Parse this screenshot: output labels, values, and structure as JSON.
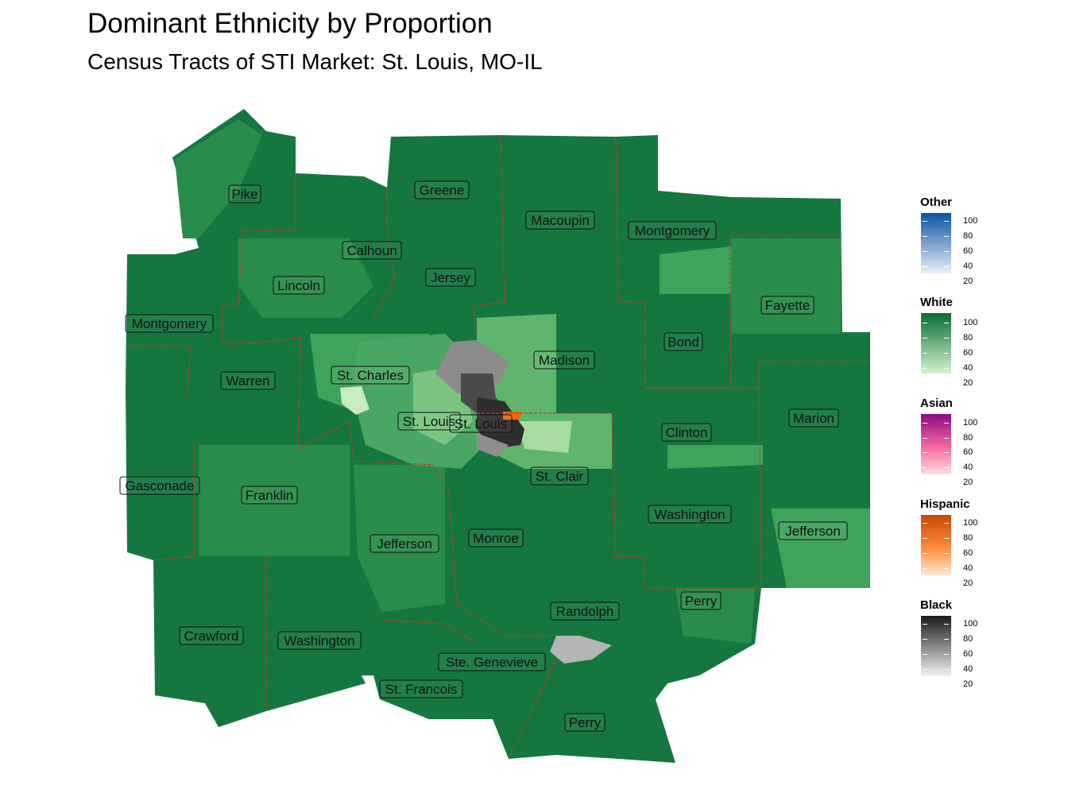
{
  "title": "Dominant Ethnicity by Proportion",
  "subtitle": "Census Tracts of STI Market: St. Louis, MO-IL",
  "counties": [
    {
      "name": "Pike"
    },
    {
      "name": "Greene"
    },
    {
      "name": "Calhoun"
    },
    {
      "name": "Macoupin"
    },
    {
      "name": "Montgomery"
    },
    {
      "name": "Jersey"
    },
    {
      "name": "Lincoln"
    },
    {
      "name": "Fayette"
    },
    {
      "name": "Montgomery"
    },
    {
      "name": "Bond"
    },
    {
      "name": "Madison"
    },
    {
      "name": "St. Charles"
    },
    {
      "name": "Warren"
    },
    {
      "name": "Marion"
    },
    {
      "name": "St. Louis"
    },
    {
      "name": "St. Louis"
    },
    {
      "name": "Clinton"
    },
    {
      "name": "St. Clair"
    },
    {
      "name": "Gasconade"
    },
    {
      "name": "Franklin"
    },
    {
      "name": "Washington"
    },
    {
      "name": "Jefferson"
    },
    {
      "name": "Monroe"
    },
    {
      "name": "Jefferson"
    },
    {
      "name": "Perry"
    },
    {
      "name": "Randolph"
    },
    {
      "name": "Crawford"
    },
    {
      "name": "Washington"
    },
    {
      "name": "Ste. Genevieve"
    },
    {
      "name": "St. Francois"
    },
    {
      "name": "Perry"
    }
  ],
  "legends": [
    {
      "title": "Other",
      "color_low": "#e8f0fa",
      "color_high": "#0b52a0",
      "ticks": [
        "100",
        "80",
        "60",
        "40",
        "20"
      ]
    },
    {
      "title": "White",
      "color_low": "#d6f2cf",
      "color_high": "#0a6b37",
      "ticks": [
        "100",
        "80",
        "60",
        "40",
        "20"
      ]
    },
    {
      "title": "Asian",
      "color_low": "#fde0dd",
      "color_high": "#8a0b7e",
      "ticks": [
        "100",
        "80",
        "60",
        "40",
        "20"
      ]
    },
    {
      "title": "Hispanic",
      "color_low": "#fee8d0",
      "color_high": "#c44a04",
      "ticks": [
        "100",
        "80",
        "60",
        "40",
        "20"
      ]
    },
    {
      "title": "Black",
      "color_low": "#f2f2f2",
      "color_high": "#1a1a1a",
      "ticks": [
        "100",
        "80",
        "60",
        "40",
        "20"
      ]
    }
  ],
  "colors": {
    "background": "#ffffff",
    "county_border": "#c0392b",
    "white_dominant_dark": "#13723d",
    "white_dominant_mid": "#238b45",
    "white_dominant_light": "#74c476",
    "black_dominant": "#4d4d4d",
    "hispanic_dominant": "#f16913"
  }
}
